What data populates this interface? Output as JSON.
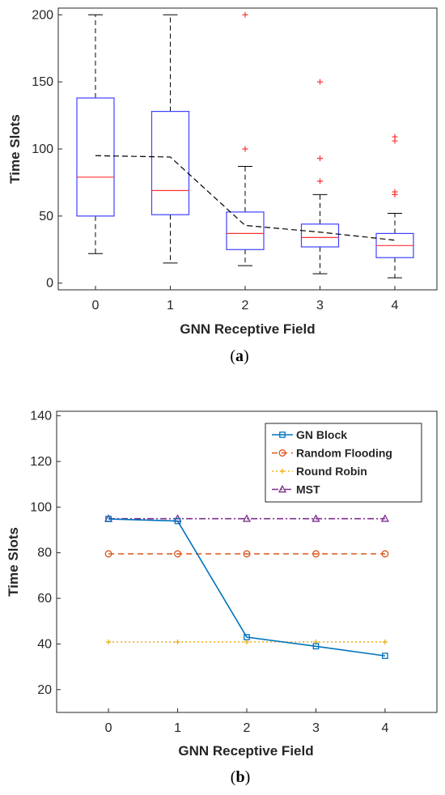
{
  "charts": [
    {
      "caption": {
        "open": "(",
        "letter": "a",
        "close": ")"
      },
      "chart_data": {
        "type": "box",
        "xlabel": "GNN Receptive Field",
        "ylabel": "Time Slots",
        "categories": [
          "0",
          "1",
          "2",
          "3",
          "4"
        ],
        "ylim": [
          -5,
          205
        ],
        "yticks": [
          0,
          50,
          100,
          150,
          200
        ],
        "grid": false,
        "colors": {
          "box": "#4040ff",
          "median": "#ff3333",
          "whisker": "#000000",
          "outlier": "#ff3333",
          "mean_line": "#000000"
        },
        "boxes": [
          {
            "category": "0",
            "whisker_low": 22,
            "q1": 50,
            "median": 79,
            "q3": 138,
            "whisker_high": 200,
            "outliers": []
          },
          {
            "category": "1",
            "whisker_low": 15,
            "q1": 51,
            "median": 69,
            "q3": 128,
            "whisker_high": 200,
            "outliers": []
          },
          {
            "category": "2",
            "whisker_low": 13,
            "q1": 25,
            "median": 37,
            "q3": 53,
            "whisker_high": 87,
            "outliers": [
              100,
              200
            ]
          },
          {
            "category": "3",
            "whisker_low": 7,
            "q1": 27,
            "median": 34,
            "q3": 44,
            "whisker_high": 66,
            "outliers": [
              76,
              93,
              150
            ]
          },
          {
            "category": "4",
            "whisker_low": 4,
            "q1": 19,
            "median": 28,
            "q3": 37,
            "whisker_high": 52,
            "outliers": [
              66,
              68,
              106,
              109
            ]
          }
        ],
        "mean_line": [
          95,
          94,
          43,
          38,
          32
        ]
      }
    },
    {
      "caption": {
        "open": "(",
        "letter": "b",
        "close": ")"
      },
      "chart_data": {
        "type": "line",
        "xlabel": "GNN Receptive Field",
        "ylabel": "Time Slots",
        "x": [
          0,
          1,
          2,
          3,
          4
        ],
        "xlim": [
          -0.75,
          4.75
        ],
        "ylim": [
          10,
          142
        ],
        "xticks": [
          0,
          1,
          2,
          3,
          4
        ],
        "yticks": [
          20,
          40,
          60,
          80,
          100,
          120,
          140
        ],
        "grid": false,
        "legend_position": "top-right",
        "series": [
          {
            "name": "GN Block",
            "values": [
              94.8,
              93.9,
              43,
              39,
              34.8
            ],
            "color": "#0072bd",
            "dash": "solid",
            "marker": "square"
          },
          {
            "name": "Random Flooding",
            "values": [
              79.5,
              79.5,
              79.5,
              79.5,
              79.5
            ],
            "color": "#d95319",
            "dash": "dashed",
            "marker": "circle"
          },
          {
            "name": "Round Robin",
            "values": [
              40.9,
              40.9,
              40.9,
              40.9,
              40.9
            ],
            "color": "#edb120",
            "dash": "dotted",
            "marker": "plus"
          },
          {
            "name": "MST",
            "values": [
              94.9,
              94.9,
              94.9,
              94.9,
              94.9
            ],
            "color": "#7e2f8e",
            "dash": "dashdot",
            "marker": "triangle"
          }
        ]
      }
    }
  ]
}
